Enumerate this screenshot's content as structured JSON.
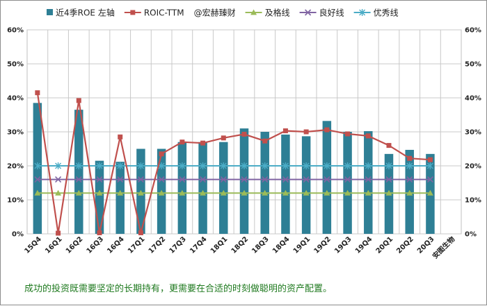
{
  "chart_data": {
    "type": "bar+line",
    "categories": [
      "15Q4",
      "16Q1",
      "16Q2",
      "16Q3",
      "16Q4",
      "17Q1",
      "17Q2",
      "17Q3",
      "17Q4",
      "18Q1",
      "18Q2",
      "18Q3",
      "18Q4",
      "19Q1",
      "19Q2",
      "19Q3",
      "19Q4",
      "20Q1",
      "20Q2",
      "20Q3",
      "安图生物"
    ],
    "ylim": [
      0,
      60
    ],
    "y2lim": [
      0,
      60
    ],
    "yticks": [
      "0%",
      "10%",
      "20%",
      "30%",
      "40%",
      "50%",
      "60%"
    ],
    "grid": true,
    "legend_position": "top",
    "series": [
      {
        "name": "近4季ROE 左轴",
        "type": "bar",
        "axis": "left",
        "color": "#2e7f95",
        "values": [
          38.5,
          null,
          36.5,
          21.5,
          21.2,
          25.0,
          25.0,
          27.0,
          27.0,
          27.0,
          31.0,
          30.0,
          29.2,
          28.7,
          33.2,
          30.0,
          30.2,
          23.5,
          24.7,
          23.5,
          null
        ]
      },
      {
        "name": "ROIC-TTM",
        "type": "line",
        "axis": "right",
        "color": "#c0504d",
        "marker": "square",
        "values": [
          41.5,
          0.2,
          39.2,
          0.3,
          28.5,
          0.3,
          23.5,
          27.0,
          26.7,
          28.2,
          29.3,
          27.3,
          30.3,
          30.0,
          30.6,
          29.4,
          28.8,
          26.0,
          22.2,
          21.8,
          null
        ]
      },
      {
        "name": "及格线",
        "type": "line",
        "axis": "right",
        "color": "#9bbb59",
        "marker": "triangle",
        "values": [
          12,
          12,
          12,
          12,
          12,
          12,
          12,
          12,
          12,
          12,
          12,
          12,
          12,
          12,
          12,
          12,
          12,
          12,
          12,
          12,
          null
        ]
      },
      {
        "name": "良好线",
        "type": "line",
        "axis": "right",
        "color": "#8064a2",
        "marker": "x",
        "values": [
          16,
          16,
          16,
          16,
          16,
          16,
          16,
          16,
          16,
          16,
          16,
          16,
          16,
          16,
          16,
          16,
          16,
          16,
          16,
          16,
          null
        ]
      },
      {
        "name": "优秀线",
        "type": "line",
        "axis": "right",
        "color": "#4bacc6",
        "marker": "star",
        "values": [
          20,
          20,
          20,
          20,
          20,
          20,
          20,
          20,
          20,
          20,
          20,
          20,
          20,
          20,
          20,
          20,
          20,
          20,
          20,
          20,
          null
        ]
      }
    ],
    "annotation": "@宏赫臻财"
  },
  "footer_note": "成功的投资既需要坚定的长期持有，更需要在合适的时刻做聪明的资产配置。"
}
